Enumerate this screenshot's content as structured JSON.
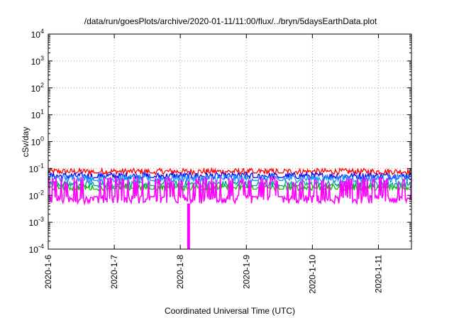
{
  "chart_data": {
    "type": "line",
    "title": "/data/run/goesPlots/archive/2020-01-11/11:00/flux/../bryn/5daysEarthData.plot",
    "xlabel": "Coordinated Universal Time (UTC)",
    "ylabel": "cSv/day",
    "yscale": "log",
    "ylim": [
      0.0001,
      10000
    ],
    "y_ticks": [
      {
        "value": 0.0001,
        "base": "10",
        "exp": "-4"
      },
      {
        "value": 0.001,
        "base": "10",
        "exp": "-3"
      },
      {
        "value": 0.01,
        "base": "10",
        "exp": "-2"
      },
      {
        "value": 0.1,
        "base": "10",
        "exp": "-1"
      },
      {
        "value": 1,
        "base": "10",
        "exp": "0"
      },
      {
        "value": 10,
        "base": "10",
        "exp": "1"
      },
      {
        "value": 100,
        "base": "10",
        "exp": "2"
      },
      {
        "value": 1000,
        "base": "10",
        "exp": "3"
      },
      {
        "value": 10000,
        "base": "10",
        "exp": "4"
      }
    ],
    "x_type": "date",
    "xlim": [
      "2020-01-06T00:00",
      "2020-01-11T12:00"
    ],
    "x_ticks": [
      {
        "value": "2020-01-06T00:00",
        "label": "2020-1-6"
      },
      {
        "value": "2020-01-07T00:00",
        "label": "2020-1-7"
      },
      {
        "value": "2020-01-08T00:00",
        "label": "2020-1-8"
      },
      {
        "value": "2020-01-09T00:00",
        "label": "2020-1-9"
      },
      {
        "value": "2020-01-10T00:00",
        "label": "2020-1-10"
      },
      {
        "value": "2020-01-11T00:00",
        "label": "2020-1-11"
      }
    ],
    "grid": true,
    "legend": "none",
    "series": [
      {
        "color": "#ff0000",
        "values_typical": [
          0.06,
          0.1
        ]
      },
      {
        "color": "#0000ff",
        "values_typical": [
          0.04,
          0.07
        ]
      },
      {
        "color": "#00a0a0",
        "values_typical": [
          0.02,
          0.035
        ]
      },
      {
        "color": "#1e90ff",
        "values_typical": [
          0.03,
          0.06
        ]
      },
      {
        "color": "#00c000",
        "values_typical": [
          0.015,
          0.025
        ]
      },
      {
        "color": "#ff00ff",
        "values_typical": [
          0.005,
          0.05
        ],
        "dropout": {
          "x": "2020-01-08T03:00",
          "value": 0.0001
        }
      }
    ]
  }
}
